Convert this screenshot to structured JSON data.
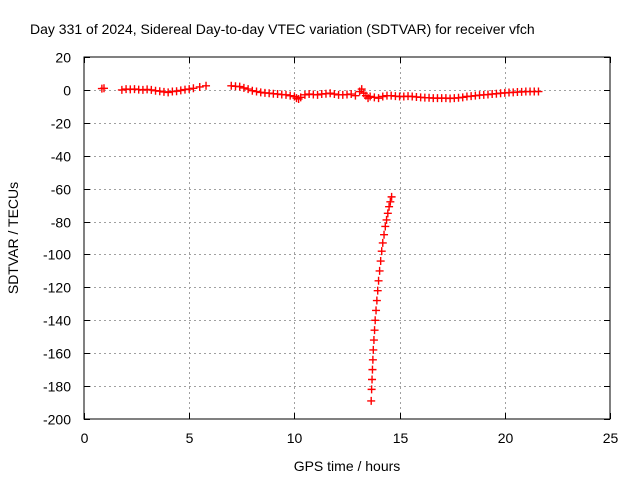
{
  "chart_data": {
    "type": "scatter",
    "title": "Day 331 of 2024, Sidereal Day-to-day VTEC variation (SDTVAR) for receiver vfch",
    "xlabel": "GPS time / hours",
    "ylabel": "SDTVAR / TECUs",
    "xlim": [
      0,
      25
    ],
    "ylim": [
      -200,
      20
    ],
    "xticks": [
      0,
      5,
      10,
      15,
      20,
      25
    ],
    "yticks": [
      20,
      0,
      -20,
      -40,
      -60,
      -80,
      -100,
      -120,
      -140,
      -160,
      -180,
      -200
    ],
    "grid": true,
    "marker": "+",
    "color": "#ff0000",
    "series": [
      {
        "name": "SDTVAR",
        "segments": [
          {
            "x": [
              0.85,
              0.95
            ],
            "y": [
              0.8,
              1.0
            ]
          },
          {
            "x": [
              1.8,
              2.0,
              2.2,
              2.4,
              2.6,
              2.8,
              3.0,
              3.2,
              3.4,
              3.6,
              3.8,
              4.0,
              4.2,
              4.4,
              4.6,
              4.8,
              5.0,
              5.2,
              5.5,
              5.8
            ],
            "y": [
              0.0,
              0.5,
              0.3,
              0.5,
              0.2,
              0.0,
              0.3,
              0.0,
              -0.5,
              -0.8,
              -1.2,
              -1.5,
              -1.0,
              -0.8,
              -0.3,
              0.2,
              0.5,
              1.0,
              1.8,
              2.5
            ]
          },
          {
            "x": [
              7.0,
              7.2,
              7.4,
              7.6,
              7.8,
              8.0,
              8.2,
              8.4,
              8.6,
              8.8,
              9.0,
              9.2,
              9.4,
              9.6,
              9.8,
              10.0,
              10.1,
              10.2,
              10.3,
              10.5,
              10.7,
              10.9,
              11.1,
              11.3,
              11.5,
              11.7,
              11.9,
              12.1,
              12.3,
              12.5,
              12.7,
              12.9,
              13.1,
              13.2,
              13.3,
              13.4,
              13.5,
              13.6,
              13.8,
              14.0,
              14.2,
              14.4,
              14.6,
              14.8,
              15.0,
              15.2,
              15.4,
              15.6,
              15.8,
              16.0,
              16.2,
              16.4,
              16.6,
              16.8,
              17.0,
              17.2,
              17.4,
              17.6,
              17.8,
              18.0,
              18.2,
              18.4,
              18.6,
              18.8,
              19.0,
              19.2,
              19.4,
              19.6,
              19.8,
              20.0,
              20.2,
              20.4,
              20.6,
              20.8,
              21.0,
              21.2,
              21.4,
              21.6
            ],
            "y": [
              2.5,
              2.2,
              2.0,
              1.2,
              0.5,
              -0.5,
              -1.0,
              -1.5,
              -1.8,
              -2.0,
              -2.3,
              -2.5,
              -2.8,
              -3.0,
              -3.5,
              -4.0,
              -5.0,
              -5.5,
              -4.5,
              -3.0,
              -2.5,
              -2.8,
              -3.0,
              -2.5,
              -2.3,
              -2.0,
              -2.5,
              -3.0,
              -3.0,
              -2.8,
              -2.5,
              -3.5,
              -1.0,
              0.5,
              -2.0,
              -3.5,
              -5.0,
              -4.0,
              -4.5,
              -5.0,
              -4.0,
              -3.5,
              -3.5,
              -3.8,
              -4.0,
              -4.0,
              -3.8,
              -4.0,
              -4.3,
              -4.5,
              -4.7,
              -4.8,
              -5.0,
              -5.0,
              -5.0,
              -5.0,
              -5.2,
              -5.0,
              -4.8,
              -4.5,
              -4.0,
              -3.8,
              -3.5,
              -3.2,
              -3.0,
              -2.8,
              -2.5,
              -2.3,
              -2.0,
              -1.8,
              -1.6,
              -1.5,
              -1.3,
              -1.2,
              -1.0,
              -1.0,
              -1.0,
              -1.0
            ]
          },
          {
            "x": [
              13.65,
              13.67,
              13.69,
              13.71,
              13.73,
              13.75,
              13.78,
              13.81,
              13.84,
              13.88,
              13.92,
              13.96,
              14.0,
              14.05,
              14.1,
              14.15,
              14.2,
              14.26,
              14.32,
              14.38,
              14.44,
              14.5,
              14.56,
              14.62
            ],
            "y": [
              -189,
              -182,
              -176,
              -170,
              -164,
              -158,
              -152,
              -146,
              -140,
              -134,
              -128,
              -122,
              -116,
              -110,
              -104,
              -98,
              -93,
              -88,
              -83,
              -79,
              -75,
              -71,
              -68,
              -65
            ]
          }
        ]
      }
    ]
  }
}
